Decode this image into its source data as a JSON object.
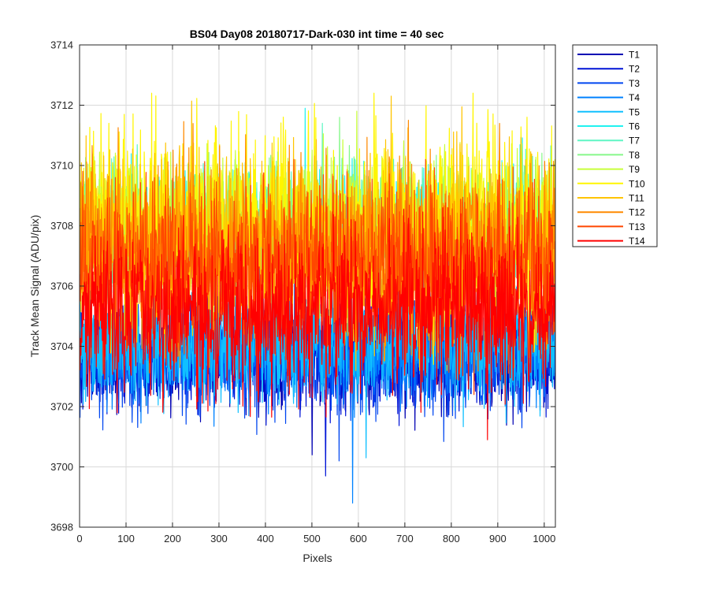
{
  "chart_data": {
    "type": "line",
    "title": "BS04 Day08 20180717-Dark-030 int time = 40 sec",
    "xlabel": "Pixels",
    "ylabel": "Track Mean Signal (ADU/pix)",
    "xlim": [
      0,
      1024
    ],
    "ylim": [
      3698,
      3714
    ],
    "xticks": [
      0,
      100,
      200,
      300,
      400,
      500,
      600,
      700,
      800,
      900,
      1000
    ],
    "yticks": [
      3698,
      3700,
      3702,
      3704,
      3706,
      3708,
      3710,
      3712,
      3714
    ],
    "grid": true,
    "legend_position": "outside-top-right",
    "n_points_per_series": 1024,
    "series": [
      {
        "name": "T1",
        "color": "#0000B3",
        "mean": 3703.6,
        "min": 3700.4,
        "max": 3705.8
      },
      {
        "name": "T2",
        "color": "#0014D6",
        "mean": 3703.8,
        "min": 3699.7,
        "max": 3706.0
      },
      {
        "name": "T3",
        "color": "#0046F0",
        "mean": 3703.7,
        "min": 3700.2,
        "max": 3706.1
      },
      {
        "name": "T4",
        "color": "#0082FF",
        "mean": 3703.9,
        "min": 3698.8,
        "max": 3706.2
      },
      {
        "name": "T5",
        "color": "#10C0FF",
        "mean": 3704.1,
        "min": 3700.3,
        "max": 3706.5
      },
      {
        "name": "T6",
        "color": "#22F2F0",
        "mean": 3707.9,
        "min": 3705.2,
        "max": 3711.9
      },
      {
        "name": "T7",
        "color": "#5FF6C4",
        "mean": 3707.9,
        "min": 3705.3,
        "max": 3711.4
      },
      {
        "name": "T8",
        "color": "#86F88A",
        "mean": 3708.0,
        "min": 3705.4,
        "max": 3711.6
      },
      {
        "name": "T9",
        "color": "#C8FF3A",
        "mean": 3708.1,
        "min": 3705.3,
        "max": 3711.8
      },
      {
        "name": "T10",
        "color": "#FFF500",
        "mean": 3708.0,
        "min": 3703.4,
        "max": 3712.4
      },
      {
        "name": "T11",
        "color": "#FFC400",
        "mean": 3707.3,
        "min": 3703.2,
        "max": 3712.3
      },
      {
        "name": "T12",
        "color": "#FF8A00",
        "mean": 3707.1,
        "min": 3703.3,
        "max": 3711.5
      },
      {
        "name": "T13",
        "color": "#FF4600",
        "mean": 3706.6,
        "min": 3702.4,
        "max": 3710.2
      },
      {
        "name": "T14",
        "color": "#FF0000",
        "mean": 3705.2,
        "min": 3700.9,
        "max": 3708.6
      }
    ]
  }
}
